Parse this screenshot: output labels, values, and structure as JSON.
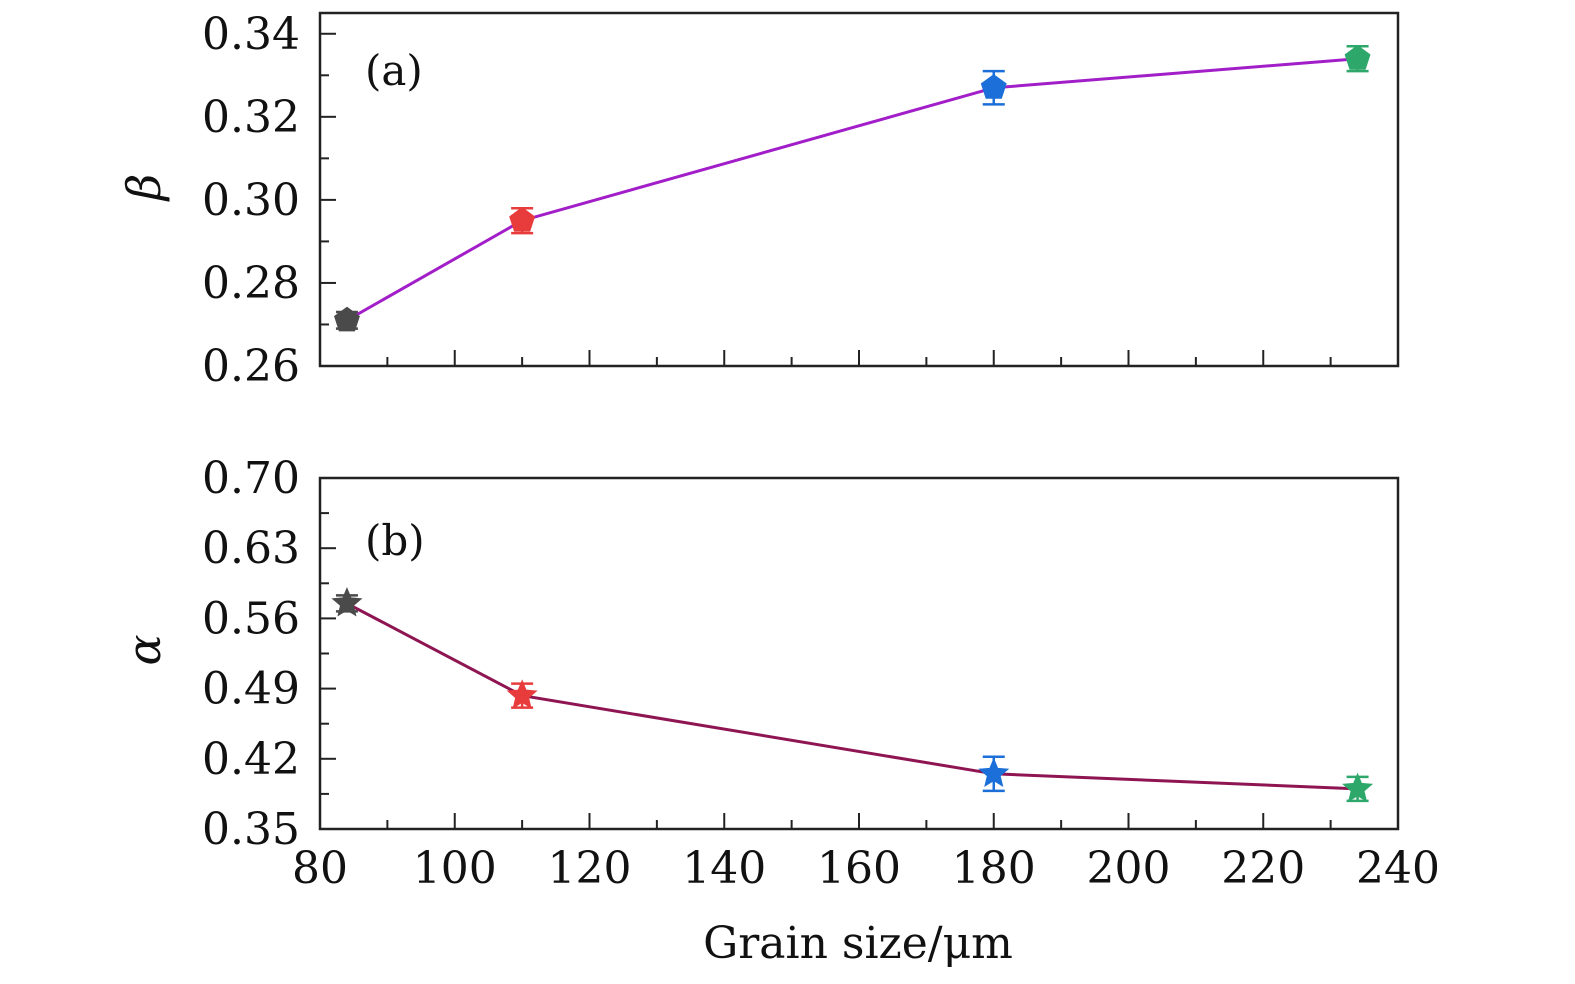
{
  "chart_data": [
    {
      "type": "line",
      "panel_label": "(a)",
      "ylabel": "β",
      "xlabel": "",
      "xlim": [
        80,
        240
      ],
      "ylim": [
        0.26,
        0.345
      ],
      "yticks": [
        "0.26",
        "0.28",
        "0.30",
        "0.32",
        "0.34"
      ],
      "line_color": "#a21ec8",
      "marker": "pentagon",
      "points": [
        {
          "x": 84,
          "y": 0.271,
          "err": 0.002,
          "color": "#4a4a4a"
        },
        {
          "x": 110,
          "y": 0.295,
          "err": 0.003,
          "color": "#e83c3c"
        },
        {
          "x": 180,
          "y": 0.327,
          "err": 0.004,
          "color": "#1c6fd8"
        },
        {
          "x": 234,
          "y": 0.334,
          "err": 0.003,
          "color": "#2ea86a"
        }
      ]
    },
    {
      "type": "line",
      "panel_label": "(b)",
      "ylabel": "α",
      "xlabel": "Grain size/μm",
      "xlim": [
        80,
        240
      ],
      "ylim": [
        0.35,
        0.7
      ],
      "xticks": [
        "80",
        "100",
        "120",
        "140",
        "160",
        "180",
        "200",
        "220",
        "240"
      ],
      "yticks": [
        "0.35",
        "0.42",
        "0.49",
        "0.56",
        "0.63",
        "0.70"
      ],
      "line_color": "#8e1552",
      "marker": "star",
      "points": [
        {
          "x": 84,
          "y": 0.575,
          "err": 0.008,
          "color": "#4a4a4a"
        },
        {
          "x": 110,
          "y": 0.483,
          "err": 0.012,
          "color": "#e83c3c"
        },
        {
          "x": 180,
          "y": 0.405,
          "err": 0.017,
          "color": "#1c6fd8"
        },
        {
          "x": 234,
          "y": 0.39,
          "err": 0.012,
          "color": "#2ea86a"
        }
      ]
    }
  ]
}
